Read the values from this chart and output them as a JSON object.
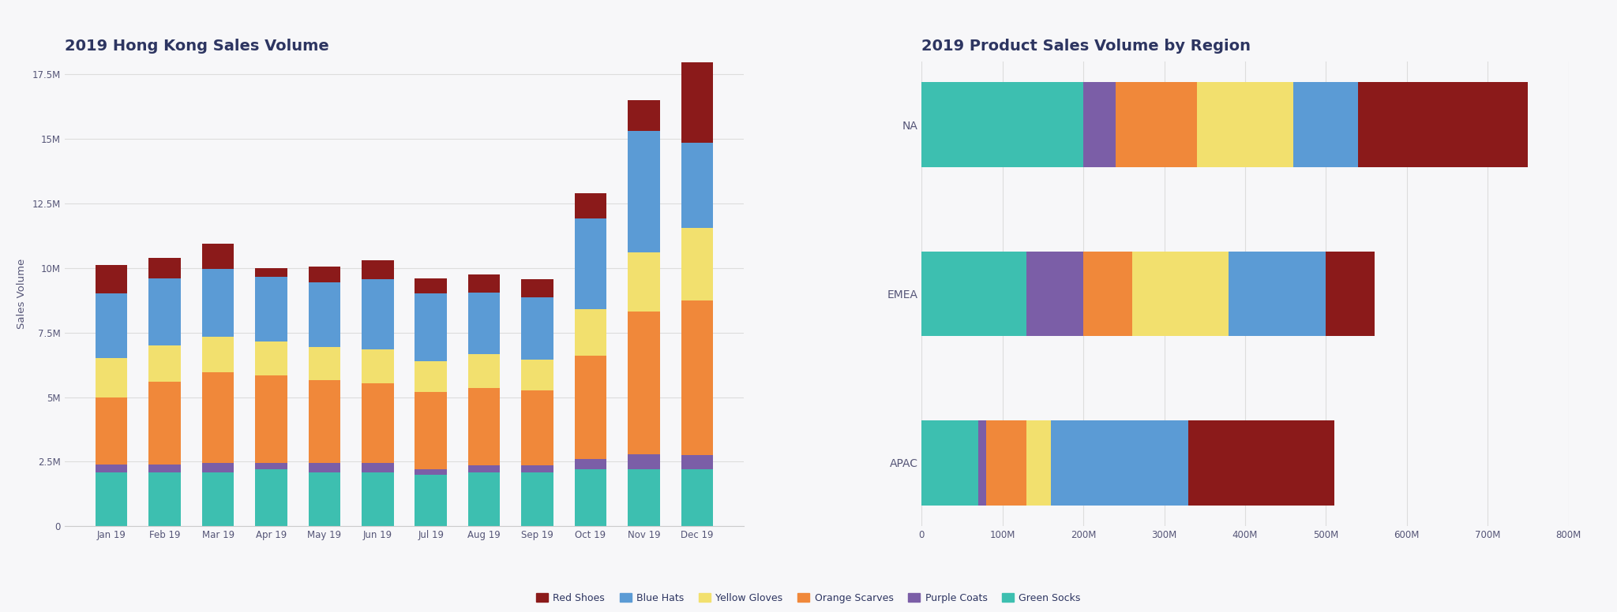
{
  "title_hk": "2019 Hong Kong Sales Volume",
  "title_region": "2019 Product Sales Volume by Region",
  "ylabel_hk": "Sales Volume",
  "colors": {
    "Red Shoes": "#8B1A1A",
    "Blue Hats": "#5B9BD5",
    "Yellow Gloves": "#F2E06E",
    "Orange Scarves": "#F0883A",
    "Purple Coats": "#7B5EA7",
    "Green Socks": "#3DBFB0"
  },
  "products": [
    "Green Socks",
    "Purple Coats",
    "Orange Scarves",
    "Yellow Gloves",
    "Blue Hats",
    "Red Shoes"
  ],
  "months": [
    "Jan 19",
    "Feb 19",
    "Mar 19",
    "Apr 19",
    "May 19",
    "Jun 19",
    "Jul 19",
    "Aug 19",
    "Sep 19",
    "Oct 19",
    "Nov 19",
    "Dec 19"
  ],
  "hk_data": {
    "Green Socks": [
      2100000,
      2100000,
      2100000,
      2200000,
      2100000,
      2100000,
      2000000,
      2100000,
      2100000,
      2200000,
      2200000,
      2200000
    ],
    "Purple Coats": [
      300000,
      300000,
      350000,
      250000,
      350000,
      350000,
      200000,
      250000,
      250000,
      400000,
      600000,
      550000
    ],
    "Orange Scarves": [
      2600000,
      3200000,
      3500000,
      3400000,
      3200000,
      3100000,
      3000000,
      3000000,
      2900000,
      4000000,
      5500000,
      6000000
    ],
    "Yellow Gloves": [
      1500000,
      1400000,
      1400000,
      1300000,
      1300000,
      1300000,
      1200000,
      1300000,
      1200000,
      1800000,
      2300000,
      2800000
    ],
    "Blue Hats": [
      2500000,
      2600000,
      2600000,
      2500000,
      2500000,
      2700000,
      2600000,
      2400000,
      2400000,
      3500000,
      4700000,
      3300000
    ],
    "Red Shoes": [
      1100000,
      800000,
      1000000,
      350000,
      600000,
      750000,
      600000,
      700000,
      700000,
      1000000,
      1200000,
      3100000
    ]
  },
  "regions": [
    "APAC",
    "EMEA",
    "NA"
  ],
  "region_data": {
    "Green Socks": [
      70000000,
      130000000,
      200000000
    ],
    "Purple Coats": [
      10000000,
      70000000,
      40000000
    ],
    "Orange Scarves": [
      50000000,
      60000000,
      100000000
    ],
    "Yellow Gloves": [
      30000000,
      120000000,
      120000000
    ],
    "Blue Hats": [
      170000000,
      120000000,
      80000000
    ],
    "Red Shoes": [
      180000000,
      60000000,
      210000000
    ]
  },
  "background_color": "#F7F7F9",
  "title_color": "#2D3561",
  "tick_color": "#555577",
  "grid_color": "#DDDDDD",
  "legend_labels": [
    "Red Shoes",
    "Blue Hats",
    "Yellow Gloves",
    "Orange Scarves",
    "Purple Coats",
    "Green Socks"
  ]
}
